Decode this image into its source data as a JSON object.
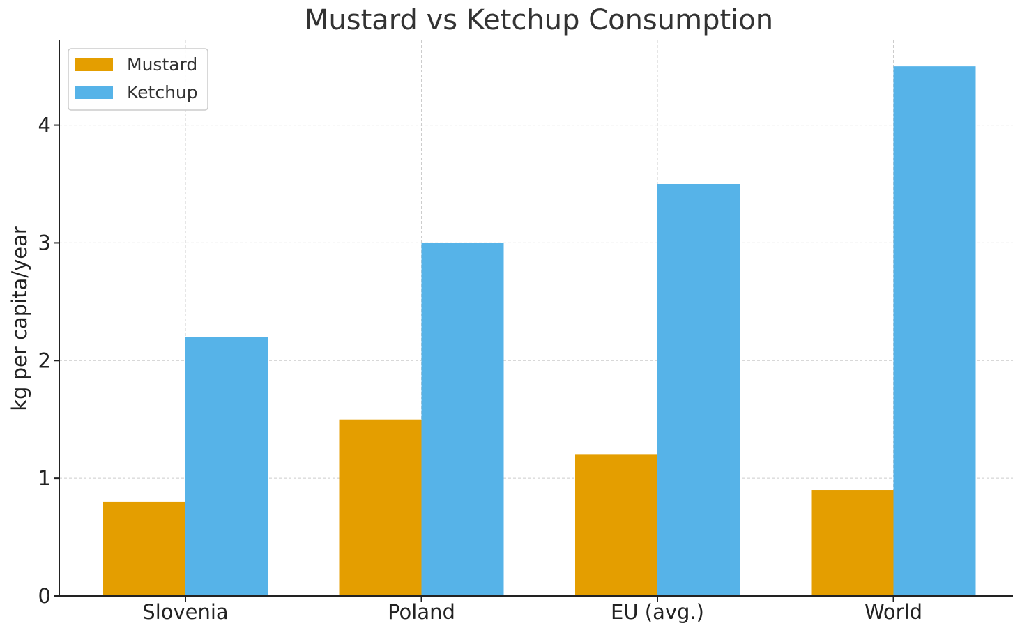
{
  "chart_data": {
    "type": "bar",
    "title": "Mustard vs Ketchup Consumption",
    "xlabel": "",
    "ylabel": "kg per capita/year",
    "categories": [
      "Slovenia",
      "Poland",
      "EU (avg.)",
      "World"
    ],
    "series": [
      {
        "name": "Mustard",
        "values": [
          0.8,
          1.5,
          1.2,
          0.9
        ],
        "color": "#E49E00"
      },
      {
        "name": "Ketchup",
        "values": [
          2.2,
          3.0,
          3.5,
          4.5
        ],
        "color": "#56B3E8"
      }
    ],
    "ylim": [
      0,
      4.72
    ],
    "yticks": [
      0,
      1,
      2,
      3,
      4
    ],
    "grid": true,
    "legend_position": "top-left"
  }
}
